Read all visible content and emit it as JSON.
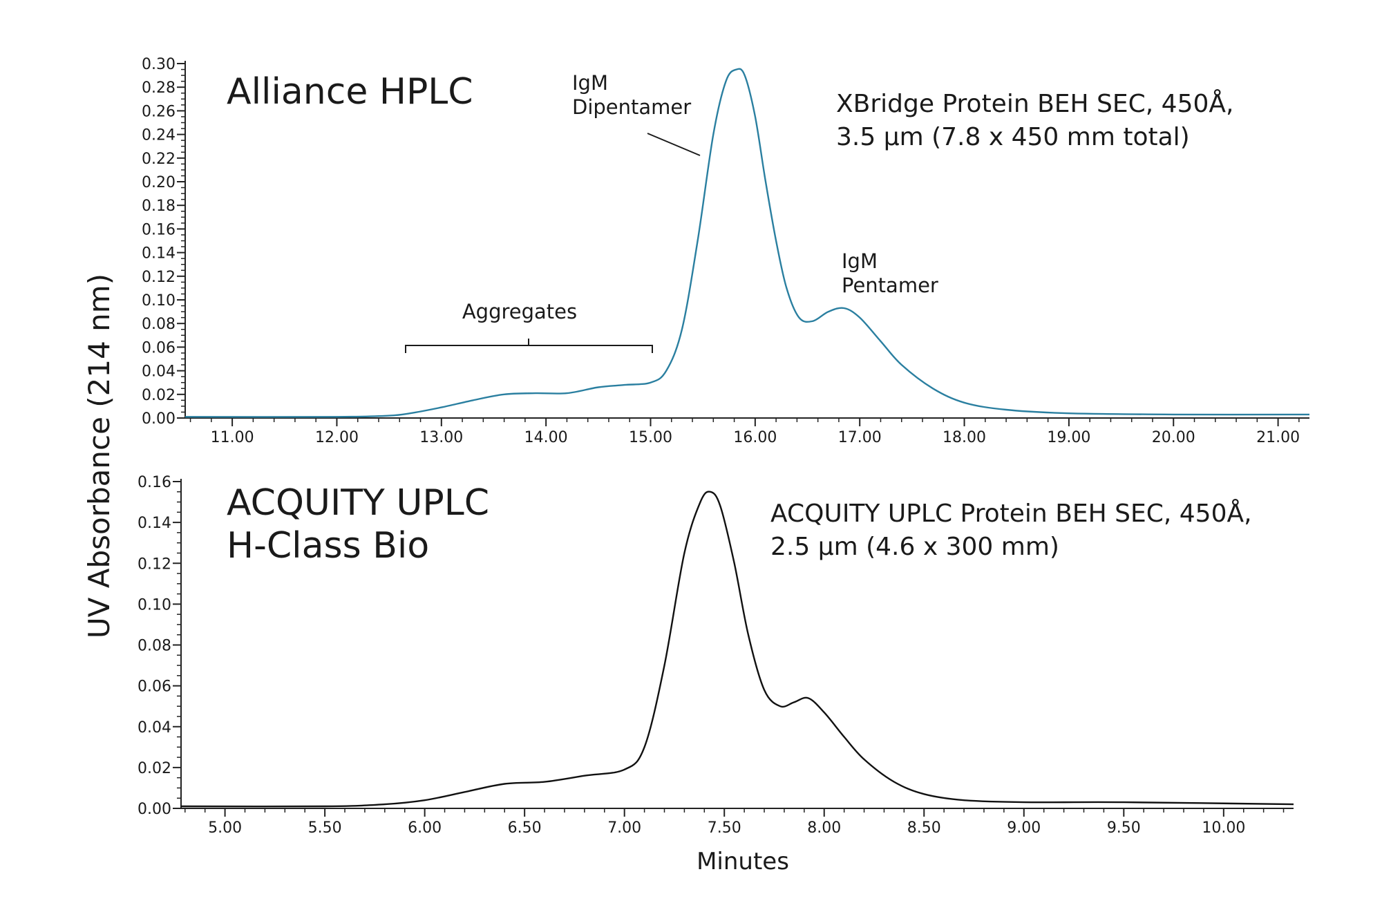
{
  "y_axis_label": "UV Absorbance (214 nm)",
  "x_axis_label": "Minutes",
  "colors": {
    "top_trace": "#2a7fa0",
    "bottom_trace": "#111111",
    "axis": "#222222"
  },
  "chart_data": [
    {
      "type": "line",
      "title_lines": [
        "Alliance HPLC"
      ],
      "column_info_lines": [
        "XBridge Protein BEH SEC, 450Å,",
        "3.5 µm (7.8 x 450 mm total)"
      ],
      "xlim": [
        10.55,
        21.3
      ],
      "ylim": [
        0.0,
        0.3
      ],
      "xticks": [
        11.0,
        12.0,
        13.0,
        14.0,
        15.0,
        16.0,
        17.0,
        18.0,
        19.0,
        20.0,
        21.0
      ],
      "xtick_labels": [
        "11.00",
        "12.00",
        "13.00",
        "14.00",
        "15.00",
        "16.00",
        "17.00",
        "18.00",
        "19.00",
        "20.00",
        "21.00"
      ],
      "yticks": [
        0.0,
        0.02,
        0.04,
        0.06,
        0.08,
        0.1,
        0.12,
        0.14,
        0.16,
        0.18,
        0.2,
        0.22,
        0.24,
        0.26,
        0.28,
        0.3
      ],
      "ytick_labels": [
        "0.00",
        "0.02",
        "0.04",
        "0.06",
        "0.08",
        "0.10",
        "0.12",
        "0.14",
        "0.16",
        "0.18",
        "0.20",
        "0.22",
        "0.24",
        "0.26",
        "0.28",
        "0.30"
      ],
      "annotations": {
        "dipentamer": [
          "IgM",
          "Dipentamer"
        ],
        "pentamer": [
          "IgM",
          "Pentamer"
        ],
        "aggregates": "Aggregates"
      },
      "series": [
        {
          "color": "#2a7fa0",
          "x": [
            10.55,
            12.0,
            12.5,
            12.7,
            13.0,
            13.3,
            13.6,
            13.9,
            14.2,
            14.5,
            14.75,
            15.0,
            15.15,
            15.3,
            15.45,
            15.6,
            15.72,
            15.82,
            15.9,
            16.0,
            16.1,
            16.2,
            16.3,
            16.42,
            16.55,
            16.7,
            16.85,
            17.0,
            17.2,
            17.4,
            17.7,
            18.0,
            18.4,
            19.0,
            20.0,
            21.3
          ],
          "y": [
            0.001,
            0.001,
            0.002,
            0.004,
            0.009,
            0.015,
            0.02,
            0.021,
            0.021,
            0.026,
            0.028,
            0.03,
            0.04,
            0.075,
            0.15,
            0.24,
            0.285,
            0.295,
            0.29,
            0.255,
            0.2,
            0.15,
            0.11,
            0.085,
            0.082,
            0.09,
            0.093,
            0.085,
            0.065,
            0.045,
            0.025,
            0.013,
            0.007,
            0.004,
            0.003,
            0.003
          ]
        }
      ]
    },
    {
      "type": "line",
      "title_lines": [
        "ACQUITY UPLC",
        "H-Class Bio"
      ],
      "column_info_lines": [
        "ACQUITY UPLC Protein BEH SEC, 450Å,",
        "2.5 µm (4.6 x 300 mm)"
      ],
      "xlim": [
        4.78,
        10.35
      ],
      "ylim": [
        0.0,
        0.16
      ],
      "xticks": [
        5.0,
        5.5,
        6.0,
        6.5,
        7.0,
        7.5,
        8.0,
        8.5,
        9.0,
        9.5,
        10.0
      ],
      "xtick_labels": [
        "5.00",
        "5.50",
        "6.00",
        "6.50",
        "7.00",
        "7.50",
        "8.00",
        "8.50",
        "9.00",
        "9.50",
        "10.00"
      ],
      "yticks": [
        0.0,
        0.02,
        0.04,
        0.06,
        0.08,
        0.1,
        0.12,
        0.14,
        0.16
      ],
      "ytick_labels": [
        "0.00",
        "0.02",
        "0.04",
        "0.06",
        "0.08",
        "0.10",
        "0.12",
        "0.14",
        "0.16"
      ],
      "series": [
        {
          "color": "#111111",
          "x": [
            4.78,
            5.5,
            5.8,
            6.0,
            6.2,
            6.4,
            6.6,
            6.8,
            7.0,
            7.1,
            7.2,
            7.3,
            7.38,
            7.43,
            7.48,
            7.55,
            7.62,
            7.7,
            7.78,
            7.85,
            7.92,
            8.0,
            8.1,
            8.2,
            8.35,
            8.5,
            8.7,
            9.0,
            9.5,
            10.35
          ],
          "y": [
            0.001,
            0.001,
            0.002,
            0.004,
            0.008,
            0.012,
            0.013,
            0.016,
            0.019,
            0.03,
            0.07,
            0.125,
            0.15,
            0.155,
            0.148,
            0.12,
            0.085,
            0.058,
            0.05,
            0.052,
            0.054,
            0.047,
            0.035,
            0.024,
            0.013,
            0.007,
            0.004,
            0.003,
            0.003,
            0.002
          ]
        }
      ]
    }
  ]
}
